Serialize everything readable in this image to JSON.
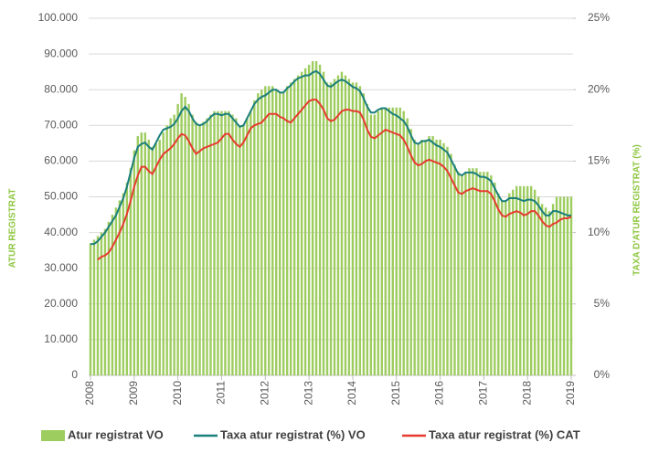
{
  "chart_data": {
    "type": "bar",
    "y_label": "ATUR REGISTRAT",
    "y2_label": "TAXA D'ATUR REGISTRAT (%)",
    "grid": true,
    "legend": "bottom",
    "categories": [
      "2008",
      null,
      null,
      null,
      null,
      null,
      null,
      null,
      null,
      null,
      null,
      null,
      "2009",
      null,
      null,
      null,
      null,
      null,
      null,
      null,
      null,
      null,
      null,
      null,
      "2010",
      null,
      null,
      null,
      null,
      null,
      null,
      null,
      null,
      null,
      null,
      null,
      "2011",
      null,
      null,
      null,
      null,
      null,
      null,
      null,
      null,
      null,
      null,
      null,
      "2012",
      null,
      null,
      null,
      null,
      null,
      null,
      null,
      null,
      null,
      null,
      null,
      "2013",
      null,
      null,
      null,
      null,
      null,
      null,
      null,
      null,
      null,
      null,
      null,
      "2014",
      null,
      null,
      null,
      null,
      null,
      null,
      null,
      null,
      null,
      null,
      null,
      "2015",
      null,
      null,
      null,
      null,
      null,
      null,
      null,
      null,
      null,
      null,
      null,
      "2016",
      null,
      null,
      null,
      null,
      null,
      null,
      null,
      null,
      null,
      null,
      null,
      "2017",
      null,
      null,
      null,
      null,
      null,
      null,
      null,
      null,
      null,
      null,
      null,
      "2018",
      null,
      null,
      null,
      null,
      null,
      null,
      null,
      null,
      null,
      null,
      null,
      "2019"
    ],
    "ylim": [
      0,
      100000
    ],
    "yticks": [
      0,
      {
        "value": 10000,
        "label": "10.000"
      },
      {
        "value": 20000,
        "label": "20.000"
      },
      {
        "value": 30000,
        "label": "30.000"
      },
      {
        "value": 40000,
        "label": "40.000"
      },
      {
        "value": 50000,
        "label": "50.000"
      },
      {
        "value": 60000,
        "label": "60.000"
      },
      {
        "value": 70000,
        "label": "70.000"
      },
      {
        "value": 80000,
        "label": "80.000"
      },
      {
        "value": 90000,
        "label": "90.000"
      },
      {
        "value": 100000,
        "label": "100.000"
      }
    ],
    "y2lim": [
      0,
      25
    ],
    "y2ticks": [
      {
        "value": 0,
        "label": "0%"
      },
      {
        "value": 5,
        "label": "5%"
      },
      {
        "value": 10,
        "label": "10%"
      },
      {
        "value": 15,
        "label": "15%"
      },
      {
        "value": 20,
        "label": "20%"
      },
      {
        "value": 25,
        "label": "25%"
      }
    ],
    "series": [
      {
        "name": "Atur registrat VO",
        "type": "bar",
        "color": "#9dcc5f",
        "values": [
          37000,
          38000,
          39000,
          40000,
          41000,
          43000,
          45000,
          47000,
          49000,
          51000,
          54000,
          58000,
          63000,
          67000,
          68000,
          68000,
          66000,
          64000,
          65000,
          66000,
          68000,
          70000,
          72000,
          73000,
          76000,
          79000,
          78000,
          76000,
          73000,
          71000,
          70000,
          71000,
          72000,
          73000,
          74000,
          74000,
          74000,
          74000,
          74000,
          73000,
          72000,
          70000,
          70000,
          72000,
          74000,
          77000,
          79000,
          80000,
          81000,
          81000,
          81000,
          80000,
          79000,
          79000,
          81000,
          82000,
          83000,
          84000,
          85000,
          86000,
          87000,
          88000,
          88000,
          87000,
          85000,
          82000,
          82000,
          83000,
          84000,
          85000,
          84000,
          83000,
          82000,
          82000,
          81000,
          79000,
          76000,
          73000,
          73000,
          74000,
          75000,
          75000,
          75000,
          75000,
          75000,
          75000,
          74000,
          72000,
          69000,
          66000,
          65000,
          66000,
          66000,
          67000,
          67000,
          66000,
          66000,
          65000,
          64000,
          62000,
          59000,
          57000,
          56000,
          57000,
          58000,
          58000,
          58000,
          57000,
          57000,
          57000,
          56000,
          54000,
          51000,
          49000,
          49000,
          51000,
          52000,
          53000,
          53000,
          53000,
          53000,
          53000,
          52000,
          50000,
          48000,
          47000,
          46000,
          48000,
          50000,
          50000,
          50000,
          50000,
          50000
        ]
      },
      {
        "name": "Taxa atur registrat (%) VO",
        "type": "line",
        "axis": "y2",
        "color": "#1b7f7b",
        "values": [
          9.2,
          9.2,
          9.4,
          9.7,
          10.0,
          10.4,
          10.8,
          11.2,
          11.8,
          12.4,
          13.2,
          14.2,
          15.2,
          16.0,
          16.2,
          16.3,
          16.0,
          15.8,
          16.3,
          16.8,
          17.2,
          17.3,
          17.4,
          17.6,
          18.0,
          18.5,
          18.8,
          18.5,
          18.0,
          17.6,
          17.5,
          17.6,
          17.8,
          18.1,
          18.3,
          18.3,
          18.2,
          18.3,
          18.3,
          18.0,
          17.7,
          17.4,
          17.5,
          18.0,
          18.5,
          19.0,
          19.3,
          19.5,
          19.6,
          19.8,
          20.0,
          20.0,
          19.8,
          19.8,
          20.1,
          20.3,
          20.6,
          20.8,
          20.9,
          21.0,
          21.0,
          21.2,
          21.3,
          21.1,
          20.7,
          20.3,
          20.2,
          20.4,
          20.6,
          20.7,
          20.6,
          20.4,
          20.2,
          20.1,
          19.9,
          19.4,
          18.8,
          18.4,
          18.4,
          18.6,
          18.7,
          18.7,
          18.5,
          18.3,
          18.2,
          18.0,
          17.8,
          17.4,
          16.8,
          16.3,
          16.2,
          16.4,
          16.4,
          16.5,
          16.3,
          16.1,
          16.0,
          15.8,
          15.6,
          15.1,
          14.6,
          14.1,
          14.0,
          14.2,
          14.2,
          14.2,
          14.1,
          13.9,
          13.9,
          13.8,
          13.6,
          13.1,
          12.6,
          12.2,
          12.2,
          12.4,
          12.4,
          12.4,
          12.3,
          12.2,
          12.3,
          12.3,
          12.2,
          11.9,
          11.5,
          11.2,
          11.2,
          11.5,
          11.5,
          11.4,
          11.3,
          11.2,
          11.2
        ]
      },
      {
        "name": "Taxa atur registrat (%) CAT",
        "type": "line",
        "axis": "y2",
        "color": "#e63b2e",
        "values": [
          null,
          null,
          8.1,
          8.3,
          8.4,
          8.6,
          9.0,
          9.5,
          10.0,
          10.6,
          11.3,
          12.2,
          13.2,
          14.0,
          14.6,
          14.6,
          14.3,
          14.1,
          14.6,
          15.1,
          15.5,
          15.7,
          15.9,
          16.2,
          16.6,
          16.9,
          16.8,
          16.4,
          15.9,
          15.5,
          15.7,
          15.9,
          16.0,
          16.1,
          16.2,
          16.3,
          16.6,
          16.9,
          16.9,
          16.5,
          16.2,
          16.0,
          16.3,
          16.8,
          17.3,
          17.5,
          17.6,
          17.7,
          18.0,
          18.3,
          18.3,
          18.3,
          18.1,
          18.0,
          17.8,
          17.7,
          18.0,
          18.3,
          18.6,
          18.9,
          19.2,
          19.3,
          19.3,
          19.0,
          18.6,
          18.0,
          17.8,
          17.9,
          18.2,
          18.5,
          18.6,
          18.6,
          18.5,
          18.5,
          18.4,
          17.9,
          17.2,
          16.7,
          16.6,
          16.8,
          17.0,
          17.2,
          17.1,
          17.0,
          16.9,
          16.8,
          16.5,
          16.0,
          15.4,
          14.9,
          14.7,
          14.8,
          15.0,
          15.1,
          15.0,
          14.9,
          14.8,
          14.6,
          14.3,
          13.8,
          13.3,
          12.8,
          12.7,
          12.9,
          13.0,
          13.1,
          13.0,
          12.9,
          12.9,
          12.9,
          12.7,
          12.2,
          11.6,
          11.2,
          11.1,
          11.3,
          11.4,
          11.5,
          11.4,
          11.2,
          11.3,
          11.5,
          11.5,
          11.2,
          10.8,
          10.5,
          10.4,
          10.6,
          10.7,
          10.9,
          11.0,
          11.0,
          11.1
        ]
      }
    ]
  }
}
